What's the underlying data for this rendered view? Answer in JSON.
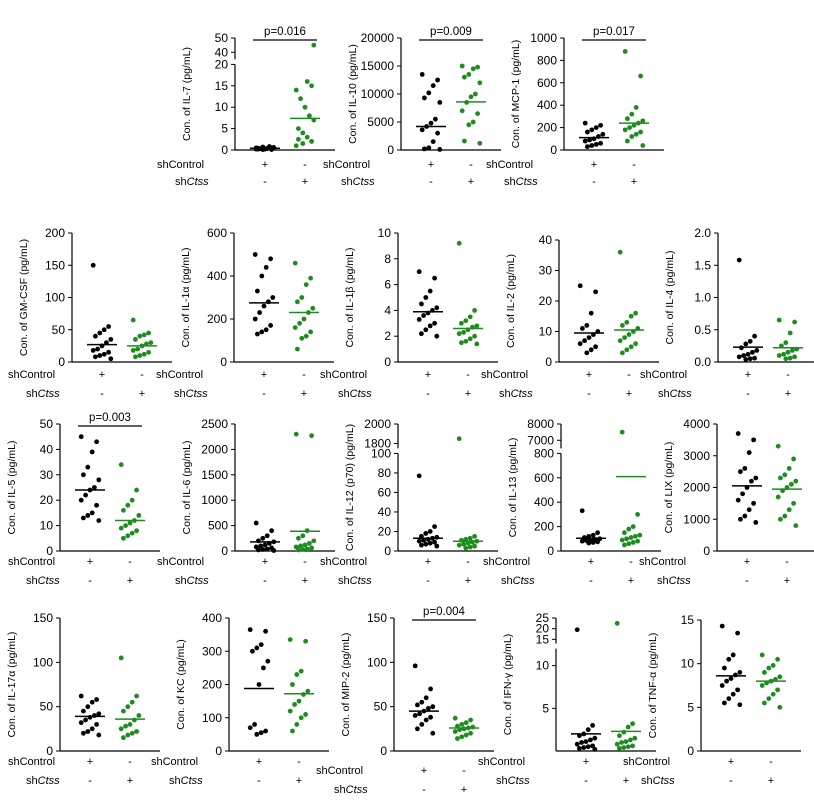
{
  "colors": {
    "control": "#000000",
    "knockdown": "#1e8c1e"
  },
  "chart_data": [
    {
      "type": "scatter",
      "ylabel": "Con. of IL-7 (pg/mL)",
      "ticks": [
        0,
        5,
        10,
        15,
        20,
        40,
        50
      ],
      "segments": [
        {
          "from": 0,
          "to": 20
        },
        {
          "from": 35,
          "to": 50
        }
      ],
      "pvalue": "p=0.016",
      "groups": [
        "shControl",
        "shCtss"
      ],
      "control": [
        0.2,
        0.5,
        0.3,
        0.1,
        0.4,
        0.6,
        0.8,
        0.2,
        0.3,
        0.5,
        0.1,
        0.4,
        0.7,
        0.2
      ],
      "control_mean": 0.4,
      "knockdown": [
        1,
        2,
        3,
        4,
        5,
        7,
        8,
        10,
        12,
        14,
        15,
        16,
        1.5,
        2.5,
        45
      ],
      "knockdown_mean": 7.4
    },
    {
      "type": "scatter",
      "ylabel": "Con. of IL-10 (pg/mL)",
      "ticks": [
        0,
        5000,
        10000,
        15000,
        20000
      ],
      "segments": [
        {
          "from": 0,
          "to": 20000
        }
      ],
      "pvalue": "p=0.009",
      "groups": [
        "shControl",
        "shCtss"
      ],
      "control": [
        13500,
        12500,
        11500,
        10200,
        9300,
        8500,
        5500,
        4800,
        4200,
        3600,
        3000,
        1500,
        400,
        200,
        100
      ],
      "control_mean": 4200,
      "knockdown": [
        15000,
        14800,
        14500,
        13500,
        13000,
        12000,
        10000,
        9500,
        8500,
        7000,
        6500,
        5000,
        4500,
        1600,
        1200
      ],
      "knockdown_mean": 8600
    },
    {
      "type": "scatter",
      "ylabel": "Con. of MCP-1 (pg/mL)",
      "ticks": [
        0,
        200,
        400,
        600,
        800,
        1000
      ],
      "segments": [
        {
          "from": 0,
          "to": 1000
        }
      ],
      "pvalue": "p=0.017",
      "groups": [
        "shControl",
        "shCtss"
      ],
      "control": [
        240,
        220,
        200,
        180,
        160,
        140,
        120,
        100,
        90,
        80,
        60,
        50,
        40,
        30
      ],
      "control_mean": 110,
      "knockdown": [
        880,
        660,
        380,
        320,
        280,
        260,
        240,
        220,
        200,
        180,
        160,
        140,
        120,
        80,
        40
      ],
      "knockdown_mean": 240
    },
    {
      "type": "scatter",
      "ylabel": "Con. of GM-CSF (pg/mL)",
      "ticks": [
        0,
        50,
        100,
        150,
        200
      ],
      "segments": [
        {
          "from": 0,
          "to": 200
        }
      ],
      "pvalue": "",
      "groups": [
        "shControl",
        "shCtss"
      ],
      "control": [
        150,
        55,
        50,
        45,
        40,
        35,
        30,
        25,
        20,
        18,
        15,
        12,
        10,
        8,
        5
      ],
      "control_mean": 27,
      "knockdown": [
        65,
        45,
        42,
        40,
        35,
        30,
        28,
        25,
        20,
        18,
        15,
        12,
        10,
        8
      ],
      "knockdown_mean": 25
    },
    {
      "type": "scatter",
      "ylabel": "Con. of IL-1α (pg/mL)",
      "ticks": [
        0,
        200,
        400,
        600
      ],
      "segments": [
        {
          "from": 0,
          "to": 600
        }
      ],
      "pvalue": "",
      "groups": [
        "shControl",
        "shCtss"
      ],
      "control": [
        500,
        480,
        440,
        400,
        330,
        300,
        280,
        260,
        230,
        200,
        170,
        150,
        140,
        130
      ],
      "control_mean": 275,
      "knockdown": [
        460,
        390,
        360,
        300,
        280,
        250,
        230,
        200,
        180,
        160,
        140,
        120,
        110,
        60
      ],
      "knockdown_mean": 230
    },
    {
      "type": "scatter",
      "ylabel": "Con. of IL-1β (pg/mL)",
      "ticks": [
        0,
        2,
        4,
        6,
        8,
        10
      ],
      "segments": [
        {
          "from": 0,
          "to": 10
        }
      ],
      "pvalue": "",
      "groups": [
        "shControl",
        "shCtss"
      ],
      "control": [
        7,
        6.5,
        5.5,
        5,
        4.5,
        4.2,
        4,
        3.8,
        3.6,
        3.3,
        3,
        2.8,
        2.5,
        2.2,
        2
      ],
      "control_mean": 3.9,
      "knockdown": [
        9.2,
        4,
        3.5,
        3.2,
        3,
        2.8,
        2.7,
        2.5,
        2.3,
        2.2,
        2,
        1.8,
        1.6,
        1.5,
        1.4
      ],
      "knockdown_mean": 2.6
    },
    {
      "type": "scatter",
      "ylabel": "Con. of IL-2 (pg/mL)",
      "ticks": [
        0,
        10,
        20,
        30,
        40
      ],
      "segments": [
        {
          "from": 0,
          "to": 40
        }
      ],
      "pvalue": "",
      "groups": [
        "shControl",
        "shCtss"
      ],
      "control": [
        25,
        23,
        16,
        12,
        11,
        10,
        9,
        8,
        7,
        6,
        5,
        4,
        3
      ],
      "control_mean": 9.5,
      "knockdown": [
        36,
        16,
        15,
        13,
        12,
        11,
        10,
        9,
        8,
        7,
        6,
        5,
        4,
        3
      ],
      "knockdown_mean": 10.5
    },
    {
      "type": "scatter",
      "ylabel": "Con. of IL-4 (pg/mL)",
      "ticks": [
        0.0,
        0.5,
        1.0,
        1.5,
        2.0
      ],
      "segments": [
        {
          "from": 0,
          "to": 2
        }
      ],
      "pvalue": "",
      "groups": [
        "shControl",
        "shCtss"
      ],
      "control": [
        1.58,
        0.4,
        0.32,
        0.28,
        0.22,
        0.18,
        0.15,
        0.12,
        0.1,
        0.08,
        0.06,
        0.05,
        0.04
      ],
      "control_mean": 0.23,
      "knockdown": [
        0.65,
        0.62,
        0.45,
        0.3,
        0.25,
        0.2,
        0.18,
        0.15,
        0.12,
        0.1,
        0.08,
        0.06,
        0.05
      ],
      "knockdown_mean": 0.22
    },
    {
      "type": "scatter",
      "ylabel": "Con. of IL-5 (pg/mL)",
      "ticks": [
        0,
        10,
        20,
        30,
        40,
        50
      ],
      "segments": [
        {
          "from": 0,
          "to": 50
        }
      ],
      "pvalue": "p=0.003",
      "groups": [
        "shControl",
        "shCtss"
      ],
      "control": [
        45,
        43,
        39,
        33,
        30,
        28,
        25,
        24,
        22,
        20,
        18,
        15,
        14,
        13,
        12
      ],
      "control_mean": 24,
      "knockdown": [
        34,
        24,
        20,
        18,
        16,
        14,
        12,
        11,
        10,
        9,
        8,
        7,
        6,
        5
      ],
      "knockdown_mean": 12
    },
    {
      "type": "scatter",
      "ylabel": "Con. of IL-6 (pg/mL)",
      "ticks": [
        0,
        500,
        1000,
        1500,
        2000,
        2500
      ],
      "segments": [
        {
          "from": 0,
          "to": 2500
        }
      ],
      "pvalue": "",
      "groups": [
        "shControl",
        "shCtss"
      ],
      "control": [
        550,
        400,
        300,
        250,
        200,
        180,
        150,
        120,
        100,
        80,
        60,
        40,
        30,
        20,
        10
      ],
      "control_mean": 180,
      "knockdown": [
        2300,
        2270,
        400,
        300,
        250,
        200,
        150,
        120,
        100,
        80,
        60,
        40,
        30,
        20
      ],
      "knockdown_mean": 390
    },
    {
      "type": "scatter",
      "ylabel": "Con. of IL-12 (p70) (pg/mL)",
      "ticks": [
        0,
        20,
        40,
        60,
        80,
        100,
        1800,
        2000
      ],
      "segments": [
        {
          "from": 0,
          "to": 100
        },
        {
          "from": 1750,
          "to": 2000
        }
      ],
      "pvalue": "",
      "groups": [
        "shControl",
        "shCtss"
      ],
      "control": [
        77,
        25,
        20,
        18,
        15,
        14,
        13,
        12,
        11,
        10,
        9,
        8,
        7,
        6,
        5
      ],
      "control_mean": 13,
      "knockdown": [
        1850,
        15,
        13,
        12,
        11,
        10,
        9,
        8,
        7,
        6,
        5,
        4,
        3
      ],
      "knockdown_mean": 10
    },
    {
      "type": "scatter",
      "ylabel": "Con. of IL-13 (pg/mL)",
      "ticks": [
        0,
        200,
        400,
        600,
        800,
        7000,
        8000
      ],
      "segments": [
        {
          "from": 0,
          "to": 800
        },
        {
          "from": 6500,
          "to": 8000
        }
      ],
      "pvalue": "",
      "groups": [
        "shControl",
        "shCtss"
      ],
      "control": [
        330,
        150,
        130,
        120,
        110,
        100,
        95,
        90,
        85,
        80,
        75,
        70,
        65
      ],
      "control_mean": 105,
      "knockdown": [
        7500,
        300,
        200,
        180,
        150,
        130,
        120,
        110,
        100,
        90,
        80,
        70,
        60,
        50
      ],
      "knockdown_mean": 610
    },
    {
      "type": "scatter",
      "ylabel": "Con. of LIX (pg/mL)",
      "ticks": [
        0,
        1000,
        2000,
        3000,
        4000
      ],
      "segments": [
        {
          "from": 0,
          "to": 4000
        }
      ],
      "pvalue": "",
      "groups": [
        "shControl",
        "shCtss"
      ],
      "control": [
        3700,
        3500,
        3100,
        2600,
        2500,
        2300,
        2200,
        2000,
        1800,
        1600,
        1500,
        1300,
        1100,
        1000,
        900
      ],
      "control_mean": 2050,
      "knockdown": [
        3300,
        2900,
        2600,
        2400,
        2300,
        2200,
        2100,
        2000,
        1900,
        1700,
        1500,
        1300,
        1100,
        1000,
        800
      ],
      "knockdown_mean": 1950
    },
    {
      "type": "scatter",
      "ylabel": "Con. of IL-17α (pg/mL)",
      "ticks": [
        0,
        50,
        100,
        150
      ],
      "segments": [
        {
          "from": 0,
          "to": 150
        }
      ],
      "pvalue": "",
      "groups": [
        "shControl",
        "shCtss"
      ],
      "control": [
        62,
        58,
        55,
        50,
        45,
        42,
        40,
        38,
        35,
        32,
        30,
        25,
        22,
        20,
        18
      ],
      "control_mean": 39,
      "knockdown": [
        105,
        62,
        55,
        50,
        45,
        40,
        35,
        30,
        28,
        25,
        22,
        20,
        18,
        15
      ],
      "knockdown_mean": 36
    },
    {
      "type": "scatter",
      "ylabel": "Con. of KC (pg/mL)",
      "ticks": [
        0,
        100,
        200,
        300,
        400
      ],
      "segments": [
        {
          "from": 0,
          "to": 400
        }
      ],
      "pvalue": "",
      "groups": [
        "shControl",
        "shCtss"
      ],
      "control": [
        365,
        360,
        320,
        310,
        300,
        270,
        250,
        200,
        80,
        70,
        60,
        55,
        50
      ],
      "control_mean": 188,
      "knockdown": [
        335,
        330,
        240,
        230,
        200,
        180,
        170,
        150,
        140,
        120,
        110,
        100,
        80,
        60
      ],
      "knockdown_mean": 172
    },
    {
      "type": "scatter",
      "ylabel": "Con. of MIP-2 (pg/mL)",
      "ticks": [
        0,
        50,
        100,
        150
      ],
      "segments": [
        {
          "from": 0,
          "to": 150
        }
      ],
      "pvalue": "p=0.004",
      "groups": [
        "shControl",
        "shCtss"
      ],
      "control": [
        96,
        70,
        60,
        55,
        52,
        50,
        48,
        45,
        42,
        40,
        38,
        35,
        30,
        25,
        20
      ],
      "control_mean": 45,
      "knockdown": [
        37,
        35,
        32,
        30,
        28,
        27,
        26,
        25,
        24,
        22,
        20,
        18,
        16,
        14
      ],
      "knockdown_mean": 26
    },
    {
      "type": "scatter",
      "ylabel": "Con. of IFN-γ (pg/mL)",
      "ticks": [
        5,
        10,
        15,
        20,
        25
      ],
      "segments": [
        {
          "from": 0,
          "to": 12
        },
        {
          "from": 13,
          "to": 25
        }
      ],
      "pvalue": "",
      "groups": [
        "shControl",
        "shCtss"
      ],
      "control": [
        19.5,
        3.0,
        2.5,
        2.0,
        1.8,
        1.5,
        1.3,
        1.1,
        1.0,
        0.8,
        0.6,
        0.5,
        0.4,
        0.3,
        0.2
      ],
      "control_mean": 2.0,
      "knockdown": [
        22.5,
        3.2,
        2.8,
        2.2,
        1.8,
        1.5,
        1.3,
        1.1,
        1.0,
        0.8,
        0.6,
        0.5,
        0.4,
        0.3
      ],
      "knockdown_mean": 2.3
    },
    {
      "type": "scatter",
      "ylabel": "Con. of TNF-α (pg/mL)",
      "ticks": [
        0,
        5,
        10,
        15
      ],
      "segments": [
        {
          "from": 0,
          "to": 15
        }
      ],
      "pvalue": "",
      "groups": [
        "shControl",
        "shCtss"
      ],
      "control": [
        14.3,
        13.5,
        11,
        10.5,
        9.5,
        9,
        8.7,
        8.3,
        8,
        7.5,
        7,
        6.5,
        6,
        5.5,
        5.3
      ],
      "control_mean": 8.6,
      "knockdown": [
        11,
        10.5,
        9.8,
        9.5,
        9,
        8.5,
        8.2,
        8,
        7.8,
        7.5,
        7,
        6.5,
        6,
        5.5,
        5
      ],
      "knockdown_mean": 8.0
    }
  ],
  "axis_labels": {
    "row_control": "shControl",
    "row_knock_prefix": "sh",
    "row_knock_gene": "Ctss",
    "plus": "+",
    "minus": "-"
  }
}
